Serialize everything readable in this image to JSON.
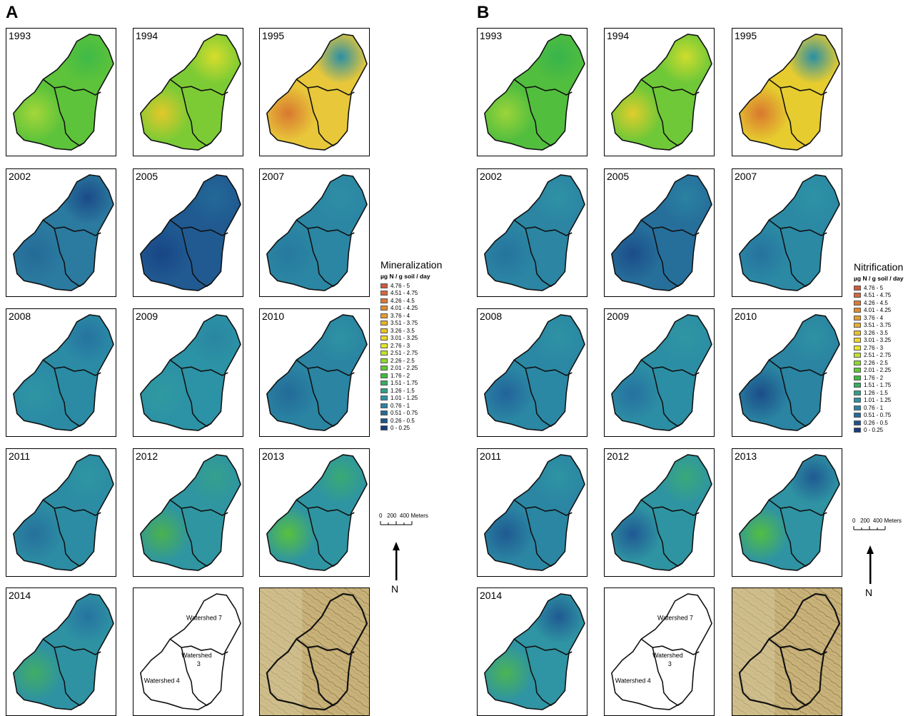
{
  "panels": [
    {
      "letter": "A",
      "legend_title": "Mineralization",
      "legend_unit": "µg N / g soil / day",
      "maps": [
        {
          "year": "1993",
          "type": "data",
          "bg": "#5dc33a",
          "blobs": [
            {
              "c": "#a4d63a"
            },
            {
              "c": "#3fba48"
            }
          ]
        },
        {
          "year": "1994",
          "type": "data",
          "bg": "#7ccb35",
          "blobs": [
            {
              "c": "#e3c82a"
            },
            {
              "c": "#d7dd2c"
            }
          ]
        },
        {
          "year": "1995",
          "type": "data",
          "bg": "#e8c83a",
          "blobs": [
            {
              "c": "#d9782f"
            },
            {
              "c": "#2b8fa5"
            }
          ]
        },
        {
          "year": "2002",
          "type": "data",
          "bg": "#2b7aa0",
          "blobs": [
            {
              "c": "#246b98"
            },
            {
              "c": "#1b4a87"
            }
          ]
        },
        {
          "year": "2005",
          "type": "data",
          "bg": "#205a91",
          "blobs": [
            {
              "c": "#184586"
            },
            {
              "c": "#236997"
            }
          ]
        },
        {
          "year": "2007",
          "type": "data",
          "bg": "#2b86a3",
          "blobs": [
            {
              "c": "#267a9f"
            },
            {
              "c": "#2e8ea5"
            }
          ]
        },
        {
          "year": "2008",
          "type": "data",
          "bg": "#2b8ba5",
          "blobs": [
            {
              "c": "#2f95a3"
            },
            {
              "c": "#2673a0"
            }
          ]
        },
        {
          "year": "2009",
          "type": "data",
          "bg": "#2c92a5",
          "blobs": [
            {
              "c": "#2e9a9f"
            },
            {
              "c": "#2a86a2"
            }
          ]
        },
        {
          "year": "2010",
          "type": "data",
          "bg": "#2a84a2",
          "blobs": [
            {
              "c": "#236b99"
            },
            {
              "c": "#2e93a3"
            }
          ]
        },
        {
          "year": "2011",
          "type": "data",
          "bg": "#2c8ca3",
          "blobs": [
            {
              "c": "#26709b"
            },
            {
              "c": "#2e95a3"
            }
          ]
        },
        {
          "year": "2012",
          "type": "data",
          "bg": "#2f95a1",
          "blobs": [
            {
              "c": "#4bb14f"
            },
            {
              "c": "#34a08d"
            }
          ]
        },
        {
          "year": "2013",
          "type": "data",
          "bg": "#2f94a2",
          "blobs": [
            {
              "c": "#58c13d"
            },
            {
              "c": "#3aaa74"
            }
          ]
        },
        {
          "year": "2014",
          "type": "data",
          "bg": "#2e92a3",
          "blobs": [
            {
              "c": "#42ad65"
            },
            {
              "c": "#2673a0"
            }
          ]
        },
        {
          "type": "outline",
          "labels": [
            "Watershed 7",
            "Watershed",
            "3",
            "Watershed 4"
          ]
        },
        {
          "type": "topo"
        }
      ]
    },
    {
      "letter": "B",
      "legend_title": "Nitrification",
      "legend_unit": "µg N / g soil / day",
      "maps": [
        {
          "year": "1993",
          "type": "data",
          "bg": "#52be3e",
          "blobs": [
            {
              "c": "#9cd43a"
            },
            {
              "c": "#38b44c"
            }
          ]
        },
        {
          "year": "1994",
          "type": "data",
          "bg": "#6fc838",
          "blobs": [
            {
              "c": "#e0cd2c"
            },
            {
              "c": "#cfdc2e"
            }
          ]
        },
        {
          "year": "1995",
          "type": "data",
          "bg": "#e6cc2f",
          "blobs": [
            {
              "c": "#d9782f"
            },
            {
              "c": "#2b8fa5"
            }
          ]
        },
        {
          "year": "2002",
          "type": "data",
          "bg": "#2b85a3",
          "blobs": [
            {
              "c": "#26749e"
            },
            {
              "c": "#2f92a5"
            }
          ]
        },
        {
          "year": "2005",
          "type": "data",
          "bg": "#266f9b",
          "blobs": [
            {
              "c": "#1b4d89"
            },
            {
              "c": "#2a82a2"
            }
          ]
        },
        {
          "year": "2007",
          "type": "data",
          "bg": "#2b89a4",
          "blobs": [
            {
              "c": "#26729f"
            },
            {
              "c": "#2e92a5"
            }
          ]
        },
        {
          "year": "2008",
          "type": "data",
          "bg": "#2b88a4",
          "blobs": [
            {
              "c": "#22639a"
            },
            {
              "c": "#2e92a4"
            }
          ]
        },
        {
          "year": "2009",
          "type": "data",
          "bg": "#2c8ea4",
          "blobs": [
            {
              "c": "#2670a0"
            },
            {
              "c": "#2f95a3"
            }
          ]
        },
        {
          "year": "2010",
          "type": "data",
          "bg": "#2a84a2",
          "blobs": [
            {
              "c": "#1b4d89"
            },
            {
              "c": "#2e92a3"
            }
          ]
        },
        {
          "year": "2011",
          "type": "data",
          "bg": "#2b86a3",
          "blobs": [
            {
              "c": "#1f5a92"
            },
            {
              "c": "#2e94a3"
            }
          ]
        },
        {
          "year": "2012",
          "type": "data",
          "bg": "#2f94a2",
          "blobs": [
            {
              "c": "#1f5893"
            },
            {
              "c": "#3aa97a"
            }
          ]
        },
        {
          "year": "2013",
          "type": "data",
          "bg": "#2f93a3",
          "blobs": [
            {
              "c": "#52be42"
            },
            {
              "c": "#1f5a92"
            }
          ]
        },
        {
          "year": "2014",
          "type": "data",
          "bg": "#2f94a3",
          "blobs": [
            {
              "c": "#4bb454"
            },
            {
              "c": "#1f5a92"
            }
          ]
        },
        {
          "type": "outline",
          "labels": [
            "Watershed 7",
            "Watershed",
            "3",
            "Watershed 4"
          ]
        },
        {
          "type": "topo"
        }
      ]
    }
  ],
  "legend_classes": [
    {
      "label": "4.76 - 5",
      "color": "#cf5a3c"
    },
    {
      "label": "4.51 - 4.75",
      "color": "#d6693a"
    },
    {
      "label": "4.26 - 4.5",
      "color": "#dc7a35"
    },
    {
      "label": "4.01 - 4.25",
      "color": "#e08b33"
    },
    {
      "label": "3.76 - 4",
      "color": "#e59e32"
    },
    {
      "label": "3.51 - 3.75",
      "color": "#e8b02f"
    },
    {
      "label": "3.26 - 3.5",
      "color": "#ebc22c"
    },
    {
      "label": "3.01 - 3.25",
      "color": "#eed62a"
    },
    {
      "label": "2.76 - 3",
      "color": "#e6e829"
    },
    {
      "label": "2.51 - 2.75",
      "color": "#bfe42c"
    },
    {
      "label": "2.26 - 2.5",
      "color": "#8ed932"
    },
    {
      "label": "2.01 - 2.25",
      "color": "#5fcb35"
    },
    {
      "label": "1.76 - 2",
      "color": "#3fbd3b"
    },
    {
      "label": "1.51 - 1.75",
      "color": "#35ad60"
    },
    {
      "label": "1.26 - 1.5",
      "color": "#32a082"
    },
    {
      "label": "1.01 - 1.25",
      "color": "#2e93a3"
    },
    {
      "label": "0.76 - 1",
      "color": "#2b82a3"
    },
    {
      "label": "0.51 - 0.75",
      "color": "#246b9a"
    },
    {
      "label": "0.26 - 0.5",
      "color": "#1e548f"
    },
    {
      "label": "0 - 0.25",
      "color": "#163c80"
    }
  ],
  "scalebar": {
    "label": "0   200  400 Meters"
  },
  "north_label": "N"
}
